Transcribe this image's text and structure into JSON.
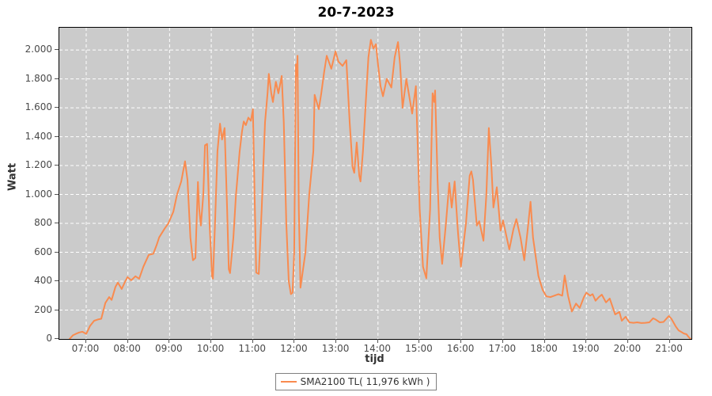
{
  "title": "20-7-2023",
  "colors": {
    "series_line": "#f98b4f",
    "plot_background": "#cbcbcb",
    "grid_line": "#ffffff",
    "axis_text": "#4a4a4a",
    "plot_border": "#000000",
    "legend_border": "#808080"
  },
  "y_axis": {
    "label": "Watt",
    "tick_labels": [
      "0",
      "200",
      "400",
      "600",
      "800",
      "1.000",
      "1.200",
      "1.400",
      "1.600",
      "1.800",
      "2.000"
    ],
    "tick_values": [
      0,
      200,
      400,
      600,
      800,
      1000,
      1200,
      1400,
      1600,
      1800,
      2000
    ]
  },
  "x_axis": {
    "label": "tijd",
    "tick_labels": [
      "07:00",
      "08:00",
      "09:00",
      "10:00",
      "11:00",
      "12:00",
      "13:00",
      "14:00",
      "15:00",
      "16:00",
      "17:00",
      "18:00",
      "19:00",
      "20:00",
      "21:00"
    ],
    "tick_values": [
      7,
      8,
      9,
      10,
      11,
      12,
      13,
      14,
      15,
      16,
      17,
      18,
      19,
      20,
      21
    ]
  },
  "legend": {
    "series_label": "SMA2100 TL( 11,976 kWh )"
  },
  "chart_data": {
    "type": "line",
    "title": "20-7-2023",
    "xlabel": "tijd",
    "ylabel": "Watt",
    "x_range": [
      6.355,
      21.52
    ],
    "ylim": [
      0,
      2154
    ],
    "grid": "white dashed, on",
    "legend_position": "bottom-center",
    "series": [
      {
        "name": "SMA2100 TL( 11,976 kWh )",
        "color": "#f98b4f",
        "points": [
          [
            6.6,
            0
          ],
          [
            6.68,
            25
          ],
          [
            6.75,
            35
          ],
          [
            6.83,
            45
          ],
          [
            6.91,
            50
          ],
          [
            7.0,
            35
          ],
          [
            7.06,
            70
          ],
          [
            7.09,
            90
          ],
          [
            7.19,
            126
          ],
          [
            7.28,
            135
          ],
          [
            7.36,
            140
          ],
          [
            7.46,
            250
          ],
          [
            7.55,
            290
          ],
          [
            7.61,
            270
          ],
          [
            7.7,
            360
          ],
          [
            7.76,
            390
          ],
          [
            7.85,
            346
          ],
          [
            7.93,
            395
          ],
          [
            7.99,
            428
          ],
          [
            8.08,
            406
          ],
          [
            8.18,
            434
          ],
          [
            8.27,
            417
          ],
          [
            8.37,
            500
          ],
          [
            8.5,
            582
          ],
          [
            8.61,
            590
          ],
          [
            8.69,
            650
          ],
          [
            8.75,
            703
          ],
          [
            8.88,
            763
          ],
          [
            8.97,
            800
          ],
          [
            9.09,
            880
          ],
          [
            9.18,
            1000
          ],
          [
            9.28,
            1090
          ],
          [
            9.37,
            1230
          ],
          [
            9.43,
            1100
          ],
          [
            9.5,
            700
          ],
          [
            9.56,
            545
          ],
          [
            9.62,
            560
          ],
          [
            9.68,
            1087
          ],
          [
            9.71,
            900
          ],
          [
            9.75,
            785
          ],
          [
            9.81,
            1000
          ],
          [
            9.85,
            1340
          ],
          [
            9.9,
            1350
          ],
          [
            9.96,
            800
          ],
          [
            10.02,
            434
          ],
          [
            10.04,
            417
          ],
          [
            10.09,
            800
          ],
          [
            10.15,
            1300
          ],
          [
            10.21,
            1490
          ],
          [
            10.26,
            1380
          ],
          [
            10.32,
            1460
          ],
          [
            10.38,
            900
          ],
          [
            10.42,
            483
          ],
          [
            10.45,
            456
          ],
          [
            10.53,
            700
          ],
          [
            10.59,
            983
          ],
          [
            10.68,
            1296
          ],
          [
            10.74,
            1440
          ],
          [
            10.78,
            1505
          ],
          [
            10.83,
            1480
          ],
          [
            10.89,
            1532
          ],
          [
            10.95,
            1510
          ],
          [
            11.0,
            1590
          ],
          [
            11.04,
            1000
          ],
          [
            11.08,
            460
          ],
          [
            11.14,
            450
          ],
          [
            11.21,
            900
          ],
          [
            11.29,
            1500
          ],
          [
            11.35,
            1700
          ],
          [
            11.38,
            1835
          ],
          [
            11.44,
            1700
          ],
          [
            11.48,
            1640
          ],
          [
            11.55,
            1780
          ],
          [
            11.61,
            1700
          ],
          [
            11.69,
            1820
          ],
          [
            11.74,
            1500
          ],
          [
            11.8,
            800
          ],
          [
            11.86,
            400
          ],
          [
            11.91,
            310
          ],
          [
            11.95,
            320
          ],
          [
            11.99,
            600
          ],
          [
            12.03,
            1900
          ],
          [
            12.05,
            1820
          ],
          [
            12.07,
            1960
          ],
          [
            12.1,
            900
          ],
          [
            12.14,
            355
          ],
          [
            12.26,
            600
          ],
          [
            12.35,
            1000
          ],
          [
            12.45,
            1300
          ],
          [
            12.48,
            1690
          ],
          [
            12.58,
            1590
          ],
          [
            12.64,
            1700
          ],
          [
            12.71,
            1850
          ],
          [
            12.77,
            1960
          ],
          [
            12.88,
            1870
          ],
          [
            12.98,
            1990
          ],
          [
            13.05,
            1920
          ],
          [
            13.15,
            1890
          ],
          [
            13.24,
            1930
          ],
          [
            13.32,
            1500
          ],
          [
            13.39,
            1190
          ],
          [
            13.43,
            1150
          ],
          [
            13.49,
            1360
          ],
          [
            13.55,
            1130
          ],
          [
            13.58,
            1090
          ],
          [
            13.64,
            1300
          ],
          [
            13.72,
            1700
          ],
          [
            13.77,
            1950
          ],
          [
            13.83,
            2070
          ],
          [
            13.89,
            2010
          ],
          [
            13.95,
            2040
          ],
          [
            14.0,
            1900
          ],
          [
            14.06,
            1750
          ],
          [
            14.12,
            1680
          ],
          [
            14.21,
            1800
          ],
          [
            14.32,
            1740
          ],
          [
            14.4,
            1950
          ],
          [
            14.48,
            2055
          ],
          [
            14.53,
            1900
          ],
          [
            14.59,
            1600
          ],
          [
            14.68,
            1800
          ],
          [
            14.82,
            1560
          ],
          [
            14.91,
            1750
          ],
          [
            15.0,
            900
          ],
          [
            15.08,
            500
          ],
          [
            15.16,
            420
          ],
          [
            15.25,
            900
          ],
          [
            15.31,
            1700
          ],
          [
            15.35,
            1640
          ],
          [
            15.37,
            1720
          ],
          [
            15.43,
            1100
          ],
          [
            15.48,
            700
          ],
          [
            15.54,
            520
          ],
          [
            15.63,
            800
          ],
          [
            15.71,
            1080
          ],
          [
            15.77,
            910
          ],
          [
            15.84,
            1090
          ],
          [
            15.92,
            730
          ],
          [
            15.99,
            500
          ],
          [
            16.11,
            800
          ],
          [
            16.2,
            1130
          ],
          [
            16.24,
            1160
          ],
          [
            16.28,
            1100
          ],
          [
            16.37,
            785
          ],
          [
            16.43,
            815
          ],
          [
            16.53,
            680
          ],
          [
            16.6,
            1000
          ],
          [
            16.66,
            1460
          ],
          [
            16.72,
            1200
          ],
          [
            16.77,
            910
          ],
          [
            16.85,
            1050
          ],
          [
            16.94,
            750
          ],
          [
            17.0,
            820
          ],
          [
            17.09,
            700
          ],
          [
            17.15,
            620
          ],
          [
            17.25,
            760
          ],
          [
            17.32,
            830
          ],
          [
            17.42,
            700
          ],
          [
            17.51,
            545
          ],
          [
            17.59,
            750
          ],
          [
            17.66,
            950
          ],
          [
            17.72,
            700
          ],
          [
            17.76,
            620
          ],
          [
            17.85,
            435
          ],
          [
            17.95,
            340
          ],
          [
            18.04,
            295
          ],
          [
            18.14,
            290
          ],
          [
            18.23,
            300
          ],
          [
            18.33,
            310
          ],
          [
            18.42,
            300
          ],
          [
            18.48,
            440
          ],
          [
            18.56,
            300
          ],
          [
            18.65,
            190
          ],
          [
            18.75,
            245
          ],
          [
            18.84,
            215
          ],
          [
            18.94,
            290
          ],
          [
            19.0,
            320
          ],
          [
            19.09,
            300
          ],
          [
            19.15,
            310
          ],
          [
            19.22,
            265
          ],
          [
            19.3,
            290
          ],
          [
            19.37,
            307
          ],
          [
            19.47,
            253
          ],
          [
            19.56,
            280
          ],
          [
            19.69,
            170
          ],
          [
            19.79,
            187
          ],
          [
            19.85,
            126
          ],
          [
            19.94,
            154
          ],
          [
            20.03,
            115
          ],
          [
            20.13,
            112
          ],
          [
            20.22,
            115
          ],
          [
            20.32,
            110
          ],
          [
            20.41,
            112
          ],
          [
            20.51,
            115
          ],
          [
            20.6,
            143
          ],
          [
            20.66,
            135
          ],
          [
            20.76,
            115
          ],
          [
            20.85,
            118
          ],
          [
            20.95,
            150
          ],
          [
            20.98,
            159
          ],
          [
            21.04,
            140
          ],
          [
            21.14,
            88
          ],
          [
            21.21,
            60
          ],
          [
            21.27,
            50
          ],
          [
            21.34,
            38
          ],
          [
            21.4,
            33
          ],
          [
            21.45,
            15
          ],
          [
            21.5,
            0
          ]
        ]
      }
    ]
  }
}
